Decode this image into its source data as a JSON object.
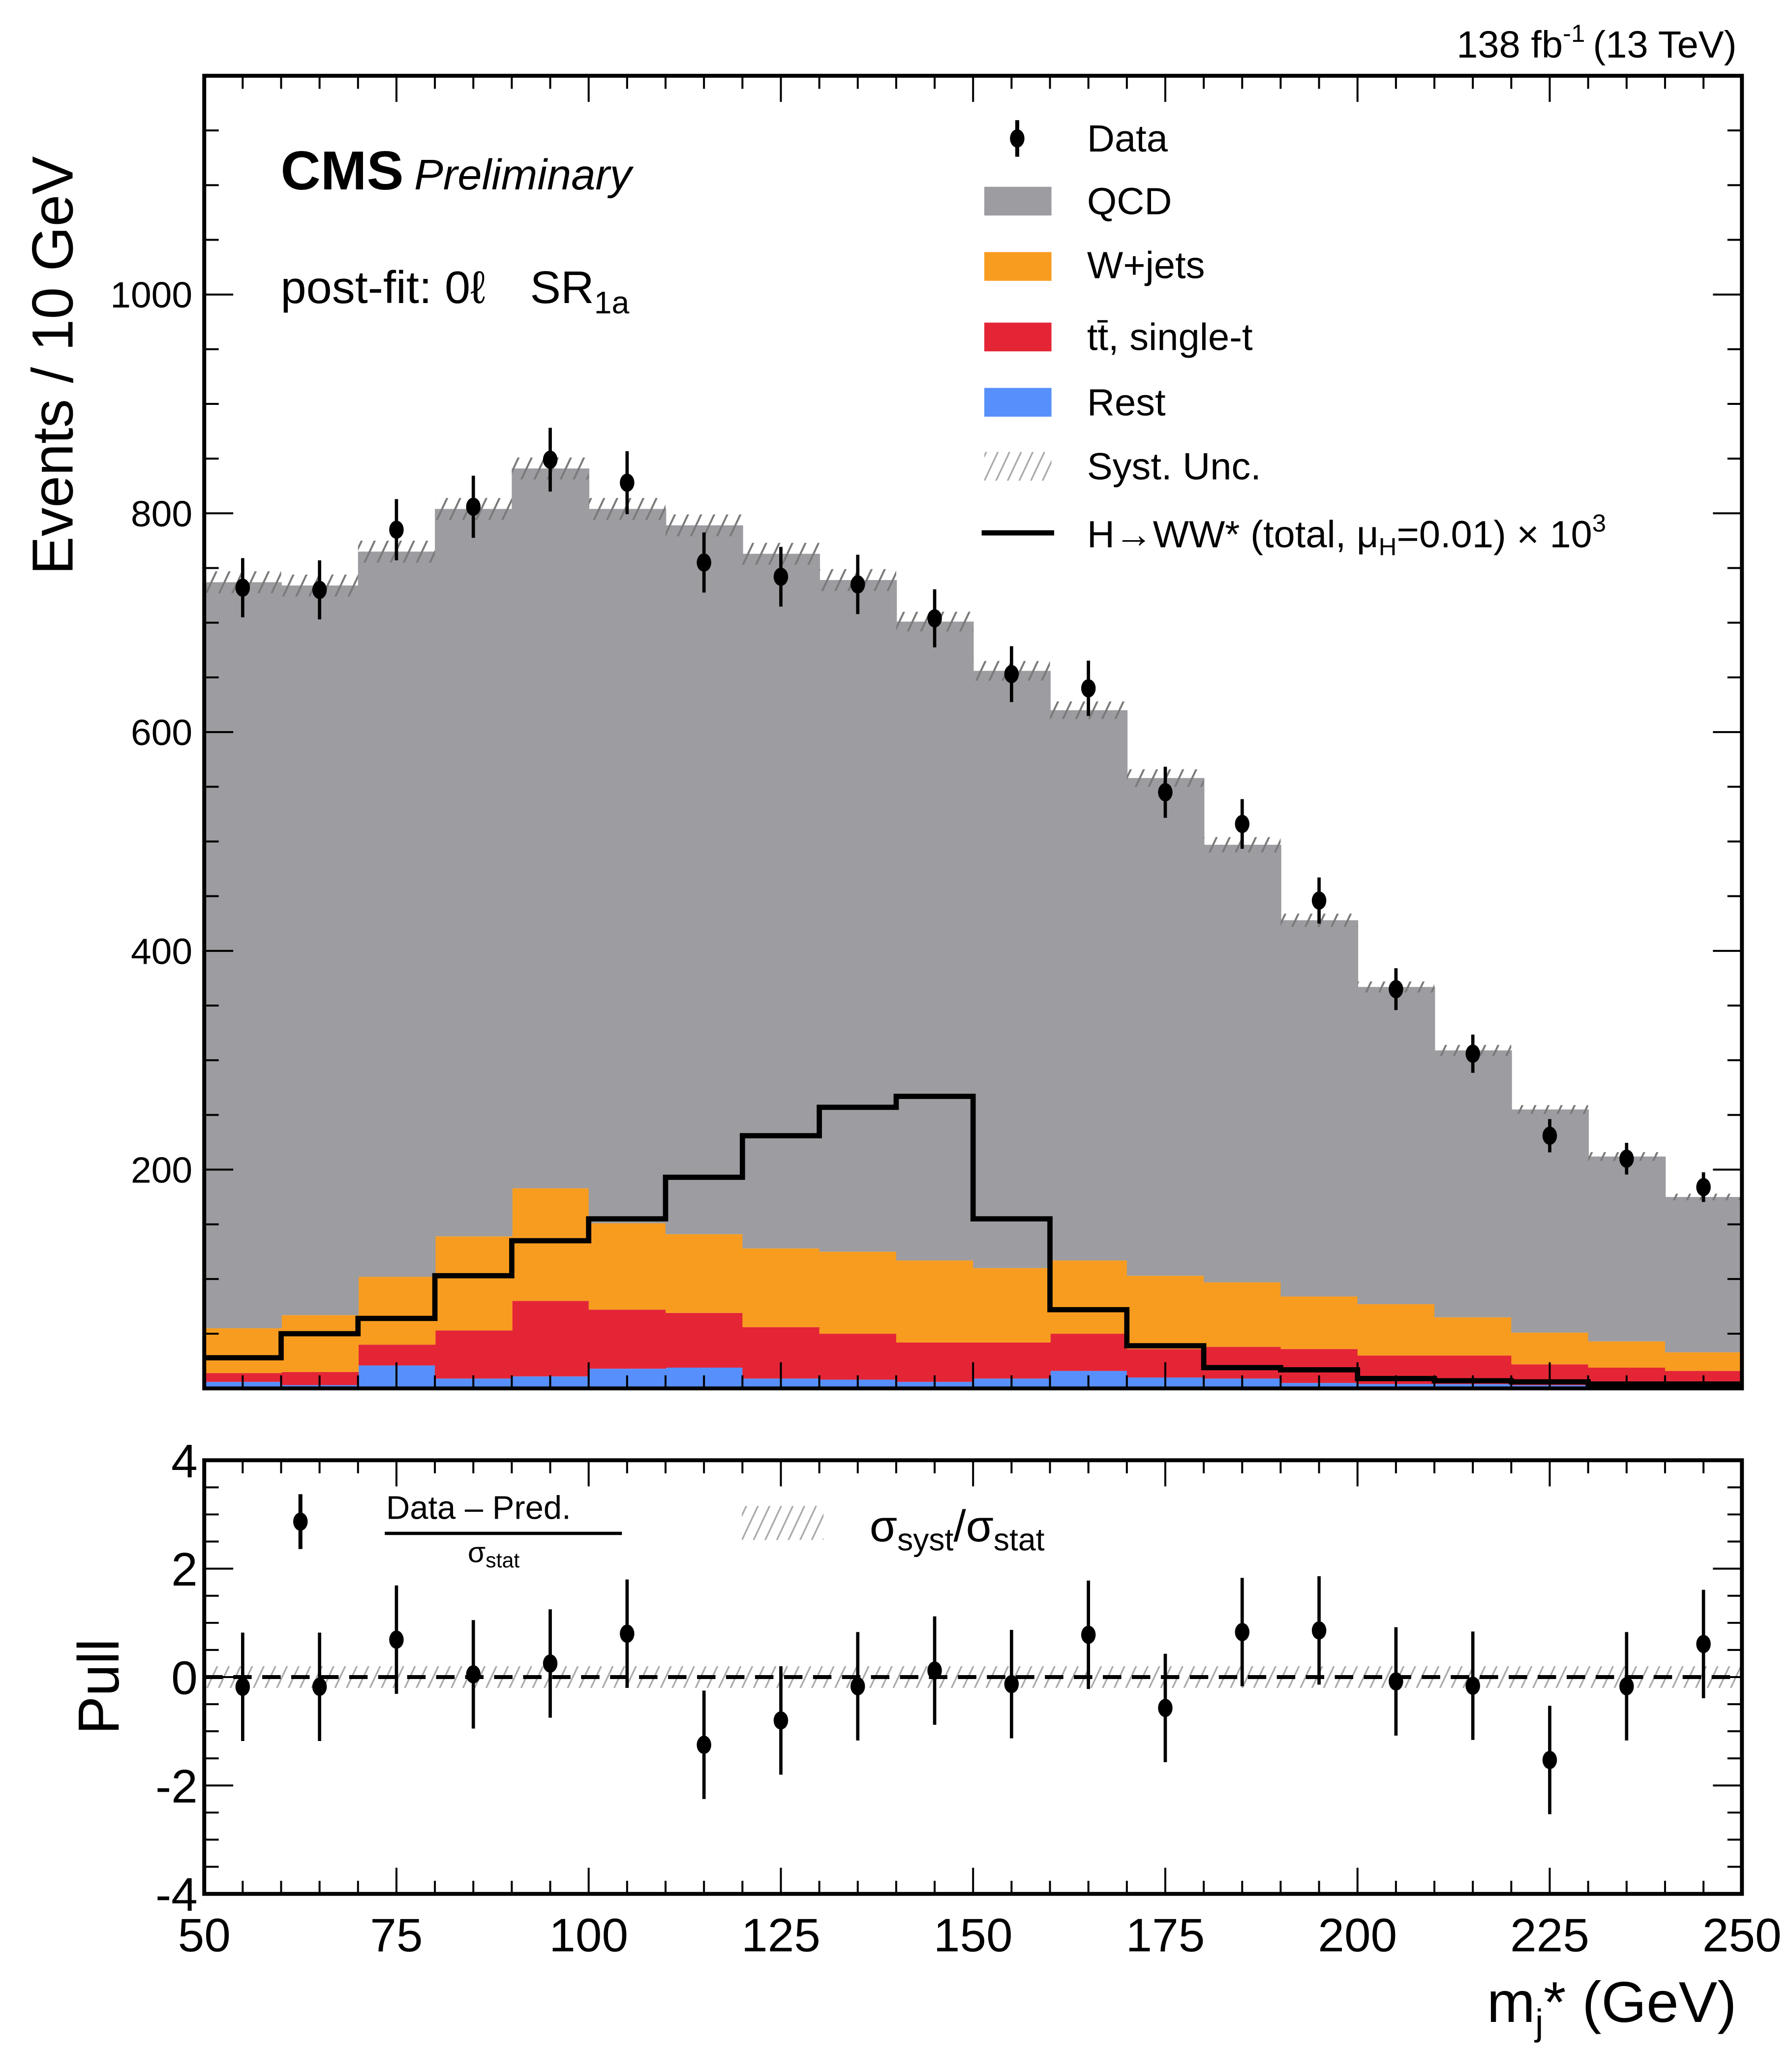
{
  "header": {
    "experiment": "CMS",
    "status": "Preliminary",
    "lumi_text": "138 fb",
    "lumi_sup": "-1",
    "energy_text": "(13 TeV)",
    "region_prefix": "post-fit: 0ℓ",
    "region_name": "SR",
    "region_sub": "1a"
  },
  "colors": {
    "qcd": "#9C9CA1",
    "wjets": "#F89C20",
    "ttbar": "#E42536",
    "rest": "#5790FC",
    "syst": "#7a7a7a",
    "signal": "#000000",
    "data": "#000000"
  },
  "chart_data": [
    {
      "type": "bar",
      "subtype": "stacked-histogram",
      "title": "",
      "xlabel": "m_j* (GeV)",
      "ylabel": "Events / 10 GeV",
      "xlim": [
        50,
        250
      ],
      "ylim": [
        0,
        1200
      ],
      "y_ticks": [
        200,
        400,
        600,
        800,
        1000
      ],
      "y_tick_labels": [
        "200",
        "400",
        "600",
        "800",
        "1000"
      ],
      "bin_edges": [
        50,
        60,
        70,
        80,
        90,
        100,
        110,
        120,
        130,
        140,
        150,
        160,
        170,
        180,
        190,
        200,
        210,
        220,
        230,
        240,
        250
      ],
      "legend_position": "top-right",
      "legend": [
        {
          "key": "data",
          "label": "Data",
          "style": "marker"
        },
        {
          "key": "qcd",
          "label": "QCD",
          "style": "fill"
        },
        {
          "key": "wjets",
          "label": "W+jets",
          "style": "fill"
        },
        {
          "key": "ttbar",
          "label": "tt̄, single-t",
          "style": "fill"
        },
        {
          "key": "rest",
          "label": "Rest",
          "style": "fill"
        },
        {
          "key": "syst",
          "label": "Syst. Unc.",
          "style": "hatch"
        },
        {
          "key": "signal",
          "label": "H→WW* (total, μ",
          "label_sub": "H",
          "label_tail": "=0.01) × 10",
          "label_sup": "3",
          "style": "line"
        }
      ],
      "series": [
        {
          "name": "Rest",
          "key": "rest",
          "values": [
            6,
            3,
            21,
            9,
            11,
            18,
            19,
            9,
            8,
            6,
            9,
            16,
            10,
            9,
            5,
            4,
            4,
            3,
            2,
            1
          ]
        },
        {
          "name": "tt̄, single-t",
          "key": "ttbar",
          "values": [
            8,
            12,
            19,
            44,
            69,
            54,
            50,
            47,
            42,
            36,
            33,
            34,
            26,
            29,
            31,
            26,
            26,
            19,
            17,
            15
          ]
        },
        {
          "name": "W+jets",
          "key": "wjets",
          "values": [
            41,
            52,
            62,
            86,
            103,
            79,
            72,
            72,
            75,
            75,
            68,
            67,
            67,
            59,
            48,
            47,
            35,
            29,
            24,
            17
          ]
        },
        {
          "name": "QCD",
          "key": "qcd",
          "values": [
            682,
            667,
            663,
            665,
            658,
            653,
            648,
            635,
            614,
            584,
            546,
            503,
            455,
            400,
            344,
            290,
            244,
            204,
            169,
            142
          ]
        }
      ],
      "total_prediction": [
        737,
        734,
        765,
        804,
        841,
        804,
        789,
        763,
        739,
        701,
        656,
        620,
        558,
        497,
        428,
        367,
        309,
        255,
        212,
        175
      ],
      "syst_unc": [
        10,
        10,
        10,
        10,
        10,
        10,
        10,
        10,
        10,
        9,
        9,
        8,
        8,
        7,
        6,
        5,
        5,
        4,
        4,
        3
      ],
      "signal": {
        "name": "H→WW* (total, μH=0.01) × 10³",
        "values": [
          28,
          50,
          64,
          103,
          135,
          155,
          193,
          231,
          257,
          267,
          155,
          72,
          39,
          19,
          17,
          9,
          7,
          6,
          4,
          4
        ]
      },
      "data": {
        "name": "Data",
        "x": [
          55,
          65,
          75,
          85,
          95,
          105,
          115,
          125,
          135,
          145,
          155,
          165,
          175,
          185,
          195,
          205,
          215,
          225,
          235,
          245
        ],
        "values": [
          732,
          730,
          785,
          806,
          849,
          828,
          755,
          742,
          735,
          704,
          653,
          640,
          545,
          516,
          446,
          365,
          306,
          231,
          210,
          184
        ]
      }
    },
    {
      "type": "scatter",
      "title": "",
      "xlabel": "m_j* (GeV)",
      "ylabel": "Pull",
      "xlim": [
        50,
        250
      ],
      "ylim": [
        -4,
        4
      ],
      "x_ticks": [
        50,
        75,
        100,
        125,
        150,
        175,
        200,
        225,
        250
      ],
      "x_tick_labels": [
        "50",
        "75",
        "100",
        "125",
        "150",
        "175",
        "200",
        "225",
        "250"
      ],
      "y_ticks": [
        -4,
        -2,
        0,
        2,
        4
      ],
      "y_tick_labels": [
        "-4",
        "-2",
        "0",
        "2",
        "4"
      ],
      "legend": [
        {
          "label_num": "Data  –  Pred.",
          "label_den": "σ",
          "label_den_sub": "stat",
          "style": "marker"
        },
        {
          "label": "σ",
          "label_sub1": "syst",
          "label_mid": "/σ",
          "label_sub2": "stat",
          "style": "hatch"
        }
      ],
      "x": [
        55,
        65,
        75,
        85,
        95,
        105,
        115,
        125,
        135,
        145,
        155,
        165,
        175,
        185,
        195,
        205,
        215,
        225,
        235,
        245
      ],
      "pull": [
        -0.18,
        -0.18,
        0.69,
        0.05,
        0.25,
        0.8,
        -1.25,
        -0.8,
        -0.17,
        0.12,
        -0.13,
        0.78,
        -0.57,
        0.83,
        0.86,
        -0.08,
        -0.16,
        -1.53,
        -0.17,
        0.61
      ],
      "pull_err": 1.0,
      "syst_over_stat": 0.2
    }
  ]
}
